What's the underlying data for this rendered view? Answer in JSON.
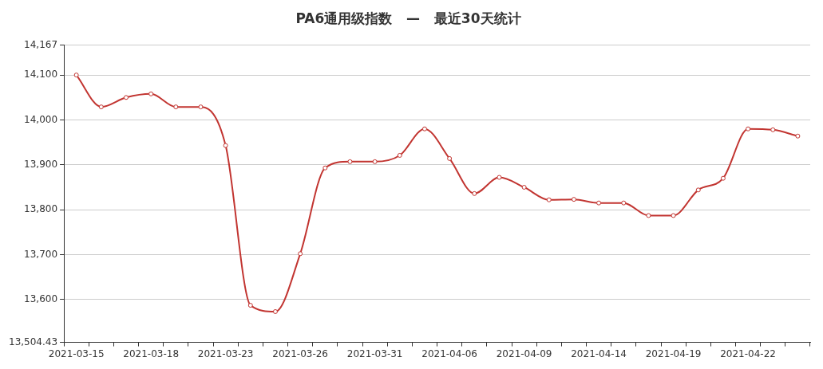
{
  "chart_data": {
    "type": "line",
    "title": "PA6通用级指数   —   最近30天统计",
    "categories": [
      "2021-03-15",
      null,
      null,
      "2021-03-18",
      null,
      null,
      "2021-03-23",
      null,
      null,
      "2021-03-26",
      null,
      null,
      "2021-03-31",
      null,
      null,
      "2021-04-06",
      null,
      null,
      "2021-04-09",
      null,
      null,
      "2021-04-14",
      null,
      null,
      "2021-04-19",
      null,
      null,
      "2021-04-22",
      null,
      null
    ],
    "series": [
      {
        "color": "#c23531",
        "values": [
          14100,
          14029,
          14050,
          14058,
          14029,
          14029,
          13943,
          13587,
          13573,
          13702,
          13893,
          13907,
          13907,
          13921,
          13980,
          13914,
          13836,
          13872,
          13850,
          13822,
          13823,
          13815,
          13815,
          13787,
          13787,
          13844,
          13870,
          13980,
          13978,
          13964
        ]
      }
    ],
    "ylim": [
      13504.43,
      14167
    ],
    "yticks": [
      {
        "value": 13504.43,
        "label": "13,504.43"
      },
      {
        "value": 13600,
        "label": "13,600"
      },
      {
        "value": 13700,
        "label": "13,700"
      },
      {
        "value": 13800,
        "label": "13,800"
      },
      {
        "value": 13900,
        "label": "13,900"
      },
      {
        "value": 14000,
        "label": "14,000"
      },
      {
        "value": 14100,
        "label": "14,100"
      },
      {
        "value": 14167,
        "label": "14,167"
      }
    ],
    "grid": "y",
    "legend": false,
    "marker": "circle",
    "line_style": "solid"
  }
}
